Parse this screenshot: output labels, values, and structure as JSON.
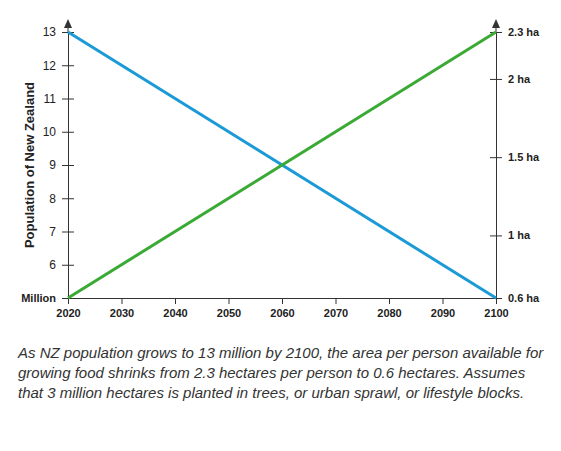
{
  "chart_data": {
    "type": "line",
    "ylabel": "Population of New Zealand",
    "annotations": [
      "As NZ population grows to 13 million by 2100, the area per person available for growing food shrinks from 2.3 hectares per person to 0.6 hectares. Assumes that 3 million hectares is planted in trees, or urban sprawl, or lifestyle blocks."
    ],
    "x": [
      2020,
      2100
    ],
    "series": [
      {
        "color": "#1b9ad6",
        "values": [
          2.3,
          0.6
        ],
        "axis": "y2"
      },
      {
        "color": "#3aaa35",
        "values": [
          5,
          13
        ]
      }
    ],
    "xlim": [
      2020,
      2100
    ],
    "xticks": [
      2020,
      2030,
      2040,
      2050,
      2060,
      2070,
      2080,
      2090,
      2100
    ],
    "ylim": [
      5,
      13
    ],
    "yticks": [
      {
        "value": 5,
        "label": "Million"
      },
      6,
      7,
      8,
      9,
      10,
      11,
      12,
      13
    ],
    "y2lim": [
      0.6,
      2.3
    ],
    "y2ticks": [
      {
        "value": 0.6,
        "label": "0.6 ha"
      },
      {
        "value": 1,
        "label": "1 ha"
      },
      {
        "value": 1.5,
        "label": "1.5 ha"
      },
      {
        "value": 2,
        "label": "2 ha"
      },
      {
        "value": 2.3,
        "label": "2.3 ha"
      }
    ],
    "grid": false
  }
}
